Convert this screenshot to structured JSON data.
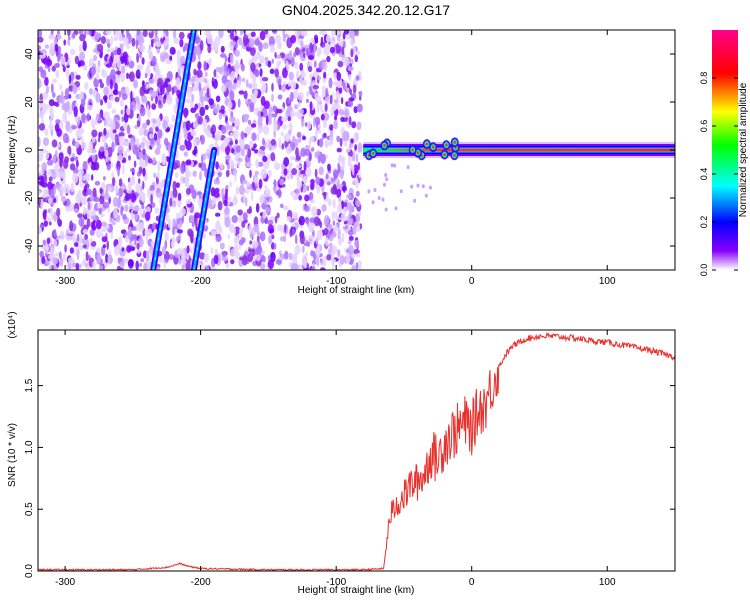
{
  "title": "GN04.2025.342.20.12.G17",
  "chart_data": [
    {
      "type": "heatmap",
      "xlabel": "Height of straight line (km)",
      "ylabel": "Frequency (Hz)",
      "xlim": [
        -320,
        150
      ],
      "ylim": [
        -50,
        50
      ],
      "x_ticks": [
        -300,
        -200,
        -100,
        0,
        100
      ],
      "y_ticks": [
        -40,
        -20,
        0,
        20,
        40
      ],
      "colorbar": {
        "label": "Normalized spectral amplitude",
        "ticks": [
          0.0,
          0.2,
          0.4,
          0.6,
          0.8
        ],
        "range": [
          0,
          1
        ],
        "colors": [
          "#ffffff",
          "#8800ff",
          "#0000ff",
          "#00ffff",
          "#00ff00",
          "#ffff00",
          "#ff0000",
          "#ff0088"
        ]
      },
      "noise_region_x": [
        -320,
        -82
      ],
      "tracks": [
        {
          "x": [
            -235,
            -205
          ],
          "y": [
            -50,
            50
          ],
          "amplitude": 0.3
        },
        {
          "x": [
            -205,
            -190
          ],
          "y": [
            -50,
            0
          ],
          "amplitude": 0.25
        }
      ],
      "main_signal": {
        "x_start": -80,
        "x_end": 150,
        "frequency": 0,
        "amplitude": 0.95
      }
    },
    {
      "type": "line",
      "xlabel": "Height of straight line (km)",
      "ylabel": "SNR (10 * v/v)",
      "y_multiplier": "(x10⁴)",
      "xlim": [
        -320,
        150
      ],
      "ylim": [
        0,
        1.95
      ],
      "x_ticks": [
        -300,
        -200,
        -100,
        0,
        100
      ],
      "y_ticks": [
        0.0,
        0.5,
        1.0,
        1.5
      ],
      "series": [
        {
          "color": "#e8302c",
          "x": [
            -320,
            -300,
            -250,
            -225,
            -215,
            -210,
            -200,
            -150,
            -100,
            -80,
            -65,
            -62,
            -60,
            -55,
            -50,
            -45,
            -40,
            -35,
            -30,
            -25,
            -20,
            -15,
            -10,
            -5,
            0,
            5,
            10,
            15,
            20,
            25,
            30,
            40,
            50,
            60,
            70,
            80,
            90,
            100,
            110,
            120,
            130,
            140,
            150
          ],
          "y": [
            0.01,
            0.01,
            0.01,
            0.03,
            0.06,
            0.04,
            0.02,
            0.01,
            0.01,
            0.01,
            0.02,
            0.3,
            0.45,
            0.55,
            0.6,
            0.7,
            0.72,
            0.78,
            0.95,
            0.9,
            1.05,
            1.1,
            1.15,
            1.2,
            1.15,
            1.3,
            1.35,
            1.5,
            1.65,
            1.75,
            1.82,
            1.88,
            1.9,
            1.9,
            1.89,
            1.88,
            1.86,
            1.85,
            1.83,
            1.81,
            1.79,
            1.76,
            1.73
          ]
        }
      ]
    }
  ]
}
